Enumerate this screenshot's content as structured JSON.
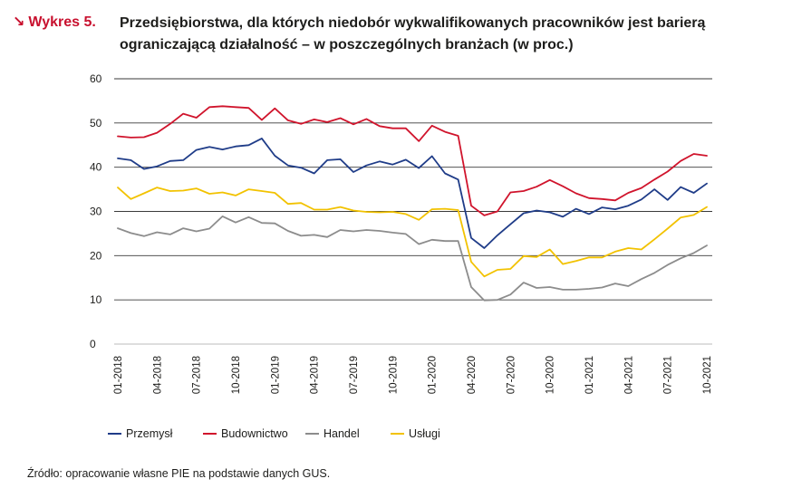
{
  "header": {
    "figure_label": "Wykres 5.",
    "arrow_icon": "↘",
    "title": "Przedsiębiorstwa, dla których niedobór wykwalifikowanych pracowników jest barierą ograniczającą działalność – w poszczególnych branżach (w proc.)"
  },
  "source": "Źródło: opracowanie własne PIE na podstawie danych GUS.",
  "chart_data": {
    "type": "line",
    "title": "",
    "xlabel": "",
    "ylabel": "",
    "ylim": [
      0,
      60
    ],
    "yticks": [
      0,
      10,
      20,
      30,
      40,
      50,
      60
    ],
    "grid": "horizontal",
    "legend_position": "bottom",
    "x_tick_labels": [
      "01-2018",
      "04-2018",
      "07-2018",
      "10-2018",
      "01-2019",
      "04-2019",
      "07-2019",
      "10-2019",
      "01-2020",
      "04-2020",
      "07-2020",
      "10-2020",
      "01-2021",
      "04-2021",
      "07-2021",
      "10-2021"
    ],
    "x": [
      "01-2018",
      "02-2018",
      "03-2018",
      "04-2018",
      "05-2018",
      "06-2018",
      "07-2018",
      "08-2018",
      "09-2018",
      "10-2018",
      "11-2018",
      "12-2018",
      "01-2019",
      "02-2019",
      "03-2019",
      "04-2019",
      "05-2019",
      "06-2019",
      "07-2019",
      "08-2019",
      "09-2019",
      "10-2019",
      "11-2019",
      "12-2019",
      "01-2020",
      "02-2020",
      "03-2020",
      "04-2020",
      "05-2020",
      "06-2020",
      "07-2020",
      "08-2020",
      "09-2020",
      "10-2020",
      "11-2020",
      "12-2020",
      "01-2021",
      "02-2021",
      "03-2021",
      "04-2021",
      "05-2021",
      "06-2021",
      "07-2021",
      "08-2021",
      "09-2021",
      "10-2021"
    ],
    "series": [
      {
        "name": "Przemysł",
        "color": "#1f3c88",
        "values": [
          42.0,
          41.6,
          39.6,
          40.2,
          41.4,
          41.6,
          43.9,
          44.6,
          44.0,
          44.7,
          45.0,
          46.5,
          42.6,
          40.4,
          39.9,
          38.6,
          41.6,
          41.8,
          38.9,
          40.4,
          41.3,
          40.6,
          41.7,
          39.8,
          42.5,
          38.6,
          37.2,
          24.0,
          21.7,
          24.6,
          27.1,
          29.6,
          30.2,
          29.8,
          28.8,
          30.6,
          29.4,
          30.9,
          30.5,
          31.3,
          32.7,
          35.0,
          32.6,
          35.5,
          34.2,
          36.3
        ]
      },
      {
        "name": "Budownictwo",
        "color": "#d0142c",
        "values": [
          47.0,
          46.7,
          46.8,
          47.8,
          49.8,
          52.1,
          51.2,
          53.6,
          53.8,
          53.6,
          53.4,
          50.7,
          53.3,
          50.6,
          49.8,
          50.8,
          50.2,
          51.1,
          49.7,
          50.9,
          49.3,
          48.8,
          48.8,
          45.9,
          49.4,
          48.0,
          47.1,
          31.3,
          29.1,
          30.0,
          34.3,
          34.6,
          35.6,
          37.1,
          35.7,
          34.1,
          33.0,
          32.8,
          32.5,
          34.2,
          35.3,
          37.2,
          39.0,
          41.4,
          43.0,
          42.6
        ]
      },
      {
        "name": "Handel",
        "color": "#8c8c8c",
        "values": [
          26.2,
          25.1,
          24.4,
          25.3,
          24.8,
          26.2,
          25.5,
          26.1,
          28.9,
          27.5,
          28.7,
          27.4,
          27.3,
          25.6,
          24.5,
          24.7,
          24.2,
          25.8,
          25.5,
          25.8,
          25.6,
          25.2,
          24.9,
          22.6,
          23.6,
          23.3,
          23.3,
          12.9,
          9.9,
          10.0,
          11.2,
          13.9,
          12.7,
          12.9,
          12.3,
          12.3,
          12.5,
          12.8,
          13.7,
          13.1,
          14.7,
          16.1,
          17.9,
          19.4,
          20.6,
          22.3
        ]
      },
      {
        "name": "Usługi",
        "color": "#f2c200",
        "values": [
          35.4,
          32.8,
          34.1,
          35.4,
          34.6,
          34.7,
          35.2,
          34.0,
          34.3,
          33.6,
          35.0,
          34.6,
          34.2,
          31.7,
          31.9,
          30.4,
          30.4,
          31.0,
          30.2,
          29.9,
          29.8,
          29.9,
          29.4,
          28.1,
          30.5,
          30.6,
          30.3,
          18.6,
          15.3,
          16.8,
          17.0,
          19.9,
          19.7,
          21.4,
          18.1,
          18.8,
          19.6,
          19.6,
          20.9,
          21.7,
          21.4,
          23.7,
          26.1,
          28.6,
          29.2,
          31.0
        ]
      }
    ]
  }
}
